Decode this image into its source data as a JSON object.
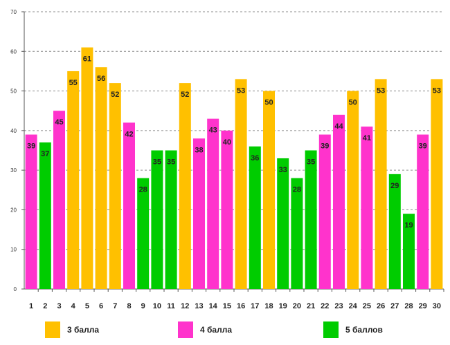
{
  "chart_data": {
    "type": "bar",
    "title": "",
    "xlabel": "",
    "ylabel": "",
    "ylim": [
      0,
      70
    ],
    "yticks": [
      0,
      10,
      20,
      30,
      40,
      50,
      60,
      70
    ],
    "grid": true,
    "legend_position": "bottom",
    "categories": [
      "1",
      "2",
      "3",
      "4",
      "5",
      "6",
      "7",
      "8",
      "9",
      "10",
      "11",
      "12",
      "13",
      "14",
      "15",
      "16",
      "17",
      "18",
      "19",
      "20",
      "21",
      "22",
      "23",
      "24",
      "25",
      "26",
      "27",
      "28",
      "29",
      "30"
    ],
    "values": [
      39,
      37,
      45,
      55,
      61,
      56,
      52,
      42,
      28,
      35,
      35,
      52,
      38,
      43,
      40,
      53,
      36,
      50,
      33,
      28,
      35,
      39,
      44,
      50,
      41,
      53,
      29,
      19,
      39,
      53
    ],
    "groups": [
      "4",
      "5",
      "4",
      "3",
      "3",
      "3",
      "3",
      "4",
      "5",
      "5",
      "5",
      "3",
      "4",
      "4",
      "4",
      "3",
      "5",
      "3",
      "5",
      "5",
      "5",
      "4",
      "4",
      "3",
      "4",
      "3",
      "5",
      "5",
      "4",
      "3"
    ],
    "legend": [
      {
        "key": "3",
        "label": "3 балла",
        "color": "#ffc000"
      },
      {
        "key": "4",
        "label": "4 балла",
        "color": "#ff33cc"
      },
      {
        "key": "5",
        "label": "5 баллов",
        "color": "#00cc00"
      }
    ]
  }
}
